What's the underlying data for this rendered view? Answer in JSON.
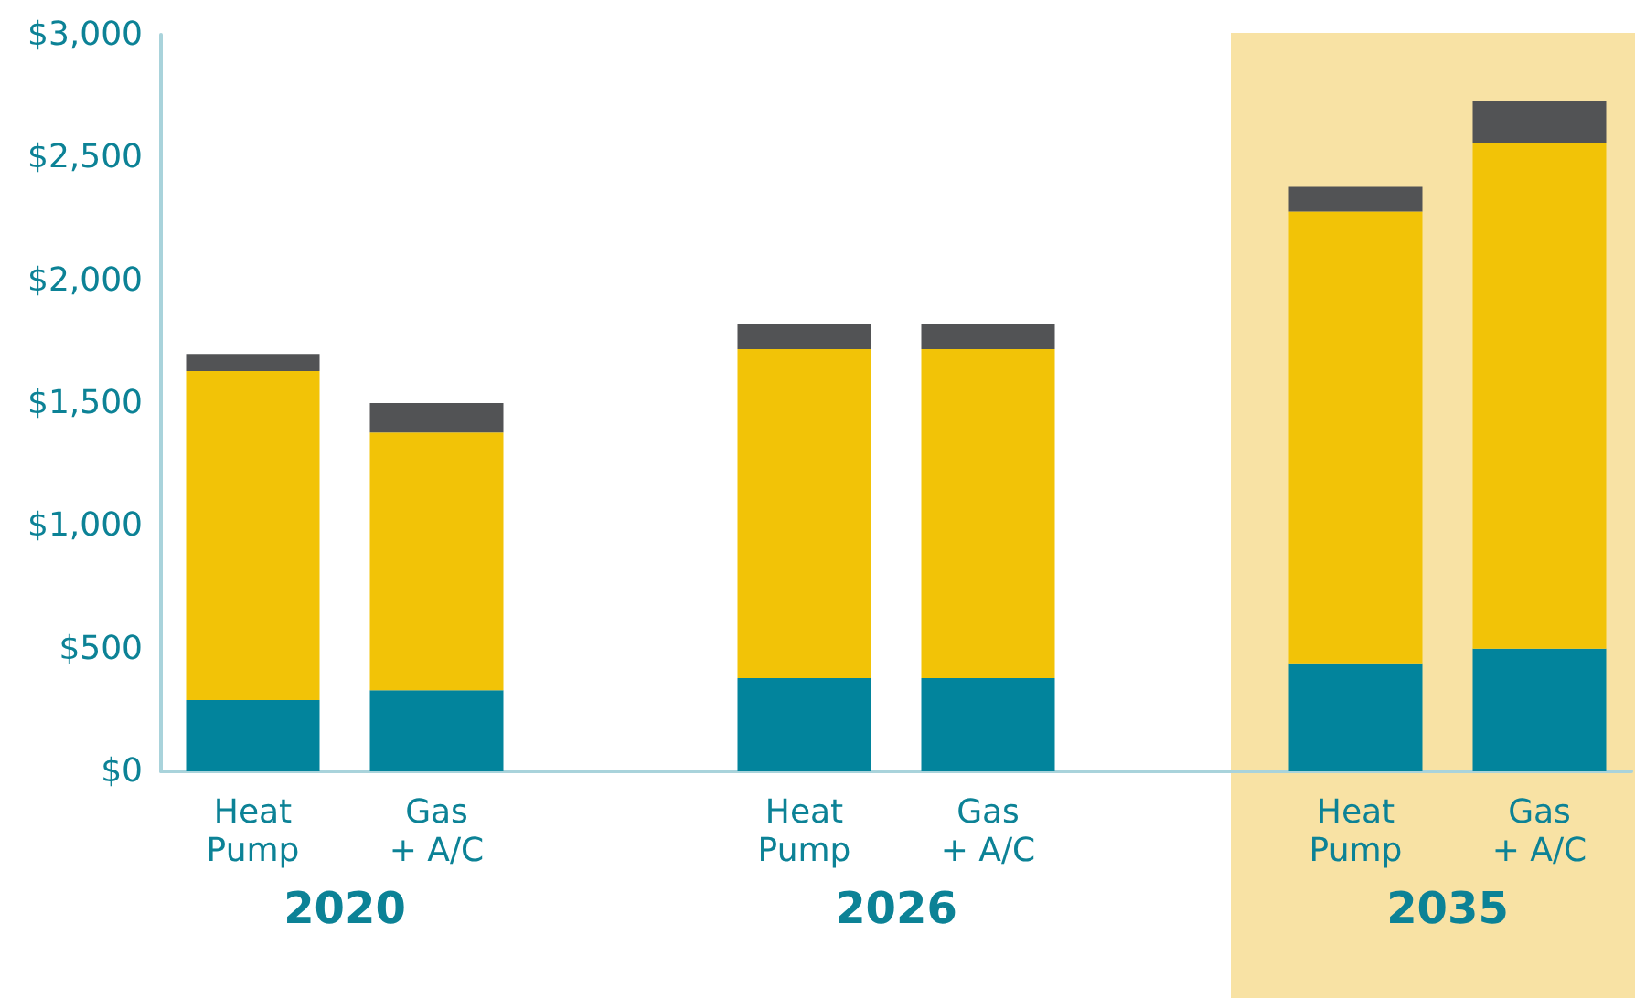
{
  "chart_data": {
    "type": "bar",
    "stacked": true,
    "categories": [
      "Heat Pump",
      "Gas + A/C",
      null,
      "Heat Pump",
      "Gas + A/C",
      null,
      "Heat Pump",
      "Gas + A/C"
    ],
    "series": [
      {
        "color": "#02849c",
        "values": [
          290,
          330,
          null,
          380,
          380,
          null,
          440,
          500
        ]
      },
      {
        "color": "#f2c307",
        "values": [
          1340,
          1050,
          null,
          1340,
          1340,
          null,
          1840,
          2060
        ]
      },
      {
        "color": "#525355",
        "values": [
          70,
          120,
          null,
          100,
          100,
          null,
          100,
          170
        ]
      }
    ],
    "ylim": [
      0,
      3000
    ],
    "yticks": [
      {
        "value": 0,
        "label": "$0"
      },
      {
        "value": 500,
        "label": "$500"
      },
      {
        "value": 1000,
        "label": "$1,000"
      },
      {
        "value": 1500,
        "label": "$1,500"
      },
      {
        "value": 2000,
        "label": "$2,000"
      },
      {
        "value": 2500,
        "label": "$2,500"
      },
      {
        "value": 3000,
        "label": "$3,000"
      }
    ],
    "annotations": [
      "2020",
      "2026",
      "2035"
    ],
    "grid": false
  }
}
